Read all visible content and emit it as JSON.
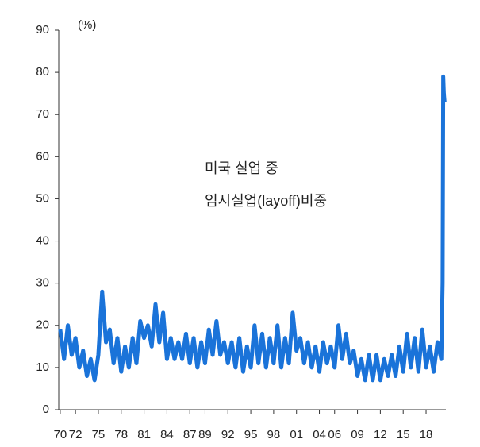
{
  "chart_data": {
    "type": "line",
    "unit_label": "(%)",
    "annotations": [
      "미국 실업 중",
      "임시실업(layoff)비중"
    ],
    "x": [
      1970,
      1970.5,
      1971,
      1971.5,
      1972,
      1972.5,
      1973,
      1973.5,
      1974,
      1974.5,
      1975,
      1975.5,
      1976,
      1976.5,
      1977,
      1977.5,
      1978,
      1978.5,
      1979,
      1979.5,
      1980,
      1980.5,
      1981,
      1981.5,
      1982,
      1982.5,
      1983,
      1983.5,
      1984,
      1984.5,
      1985,
      1985.5,
      1986,
      1986.5,
      1987,
      1987.5,
      1988,
      1988.5,
      1989,
      1989.5,
      1990,
      1990.5,
      1991,
      1991.5,
      1992,
      1992.5,
      1993,
      1993.5,
      1994,
      1994.5,
      1995,
      1995.5,
      1996,
      1996.5,
      1997,
      1997.5,
      1998,
      1998.5,
      1999,
      1999.5,
      2000,
      2000.5,
      2001,
      2001.5,
      2002,
      2002.5,
      2003,
      2003.5,
      2004,
      2004.5,
      2005,
      2005.5,
      2006,
      2006.5,
      2007,
      2007.5,
      2008,
      2008.5,
      2009,
      2009.5,
      2010,
      2010.5,
      2011,
      2011.5,
      2012,
      2012.5,
      2013,
      2013.5,
      2014,
      2014.5,
      2015,
      2015.5,
      2016,
      2016.5,
      2017,
      2017.5,
      2018,
      2018.5,
      2019,
      2019.5,
      2020,
      2020.17,
      2020.25,
      2020.33,
      2020.42
    ],
    "series": [
      {
        "name": "임시실업(layoff)비중",
        "color": "#1a73d9",
        "values": [
          19,
          12,
          20,
          13,
          17,
          10,
          14,
          8,
          12,
          7,
          13,
          28,
          16,
          19,
          11,
          17,
          9,
          15,
          10,
          17,
          11,
          21,
          17,
          20,
          15,
          25,
          16,
          23,
          12,
          17,
          12,
          16,
          12,
          18,
          11,
          17,
          10,
          16,
          11,
          19,
          13,
          21,
          13,
          16,
          11,
          16,
          10,
          17,
          9,
          15,
          10,
          20,
          11,
          18,
          10,
          17,
          11,
          20,
          10,
          17,
          11,
          23,
          14,
          17,
          11,
          16,
          10,
          15,
          9,
          16,
          11,
          15,
          10,
          20,
          12,
          18,
          11,
          14,
          8,
          12,
          7,
          13,
          7,
          13,
          7,
          12,
          8,
          13,
          8,
          15,
          9,
          18,
          10,
          17,
          9,
          19,
          10,
          15,
          9,
          16,
          12,
          30,
          79,
          75,
          73
        ]
      }
    ],
    "xlim": [
      1969.8,
      2020.6
    ],
    "xticks": [
      {
        "value": 1970,
        "label": "70"
      },
      {
        "value": 1972,
        "label": "72"
      },
      {
        "value": 1975,
        "label": "75"
      },
      {
        "value": 1978,
        "label": "78"
      },
      {
        "value": 1981,
        "label": "81"
      },
      {
        "value": 1984,
        "label": "84"
      },
      {
        "value": 1987,
        "label": "87"
      },
      {
        "value": 1989,
        "label": "89"
      },
      {
        "value": 1992,
        "label": "92"
      },
      {
        "value": 1995,
        "label": "95"
      },
      {
        "value": 1998,
        "label": "98"
      },
      {
        "value": 2001,
        "label": "01"
      },
      {
        "value": 2004,
        "label": "04"
      },
      {
        "value": 2006,
        "label": "06"
      },
      {
        "value": 2009,
        "label": "09"
      },
      {
        "value": 2012,
        "label": "12"
      },
      {
        "value": 2015,
        "label": "15"
      },
      {
        "value": 2018,
        "label": "18"
      }
    ],
    "ylim": [
      0,
      90
    ],
    "yticks": [
      0,
      10,
      20,
      30,
      40,
      50,
      60,
      70,
      80,
      90
    ],
    "grid": false
  }
}
